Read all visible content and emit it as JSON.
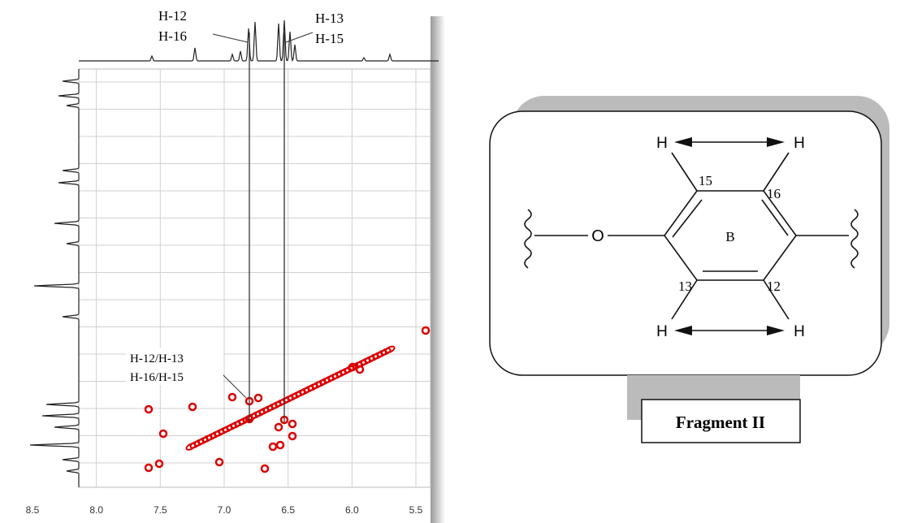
{
  "spectrum": {
    "xticks": [
      "8.5",
      "8.0",
      "7.5",
      "7.0",
      "6.5",
      "6.0",
      "5.5"
    ],
    "peak_labels": {
      "left": [
        "H-12",
        "H-16"
      ],
      "right": [
        "H-13",
        "H-15"
      ]
    },
    "cross_peak_labels": [
      "H-12/H-13",
      "H-16/H-15"
    ]
  },
  "structure": {
    "hydrogens": [
      "H",
      "H",
      "H",
      "H"
    ],
    "carbon_numbers": [
      "15",
      "16",
      "13",
      "12"
    ],
    "oxygen": "O",
    "ring": "B",
    "caption": "Fragment II"
  }
}
